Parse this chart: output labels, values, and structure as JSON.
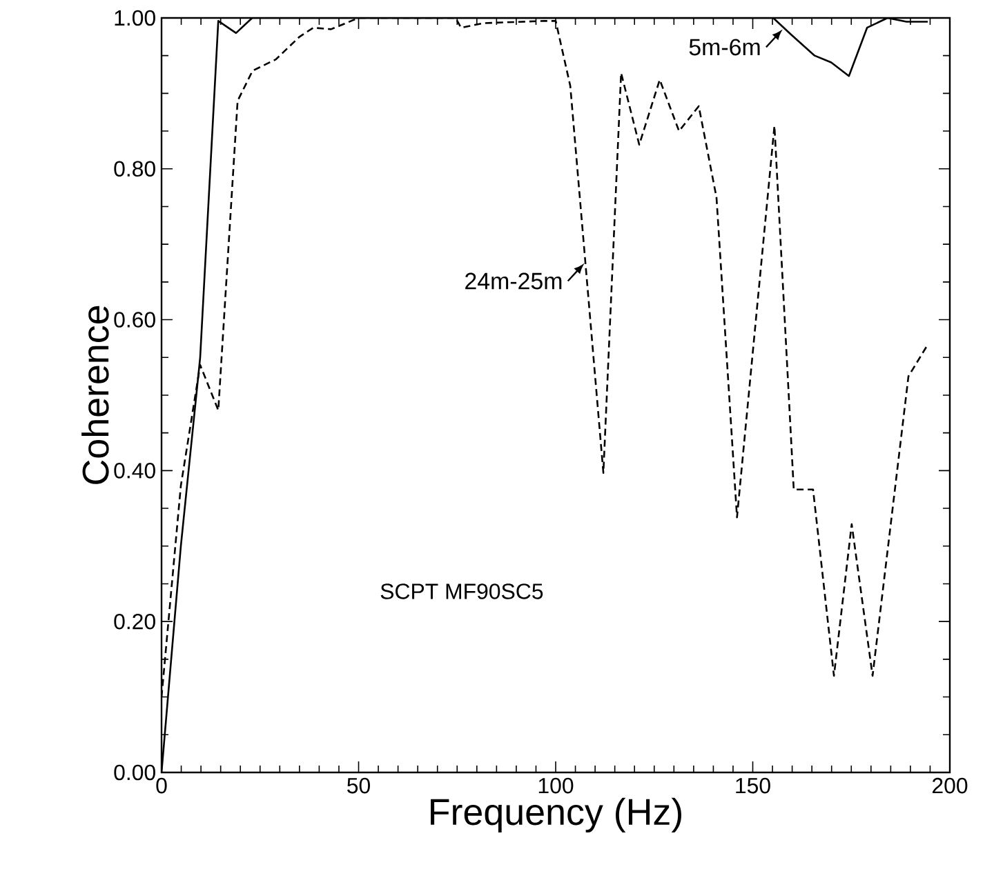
{
  "chart_data": {
    "type": "line",
    "xlabel": "Frequency  (Hz)",
    "ylabel": "Coherence",
    "xlim": [
      0,
      200
    ],
    "ylim": [
      0,
      1
    ],
    "xticks": [
      0,
      50,
      100,
      150,
      200
    ],
    "yticks": [
      {
        "value": 0,
        "label": "0.00"
      },
      {
        "value": 0.2,
        "label": "0.20"
      },
      {
        "value": 0.4,
        "label": "0.40"
      },
      {
        "value": 0.6,
        "label": "0.60"
      },
      {
        "value": 0.8,
        "label": "0.80"
      },
      {
        "value": 1,
        "label": "1.00"
      }
    ],
    "series": [
      {
        "color": "#000000",
        "line_style": "solid",
        "x": [
          0,
          4.9,
          9.8,
          14.4,
          18.9,
          23,
          50,
          100,
          155.2,
          159.7,
          165.7,
          169.9,
          174.4,
          179,
          184.2,
          189,
          194.4
        ],
        "values": [
          0.0,
          0.3,
          0.55,
          0.996,
          0.98,
          1.0,
          1.0,
          1.0,
          1.0,
          0.978,
          0.95,
          0.941,
          0.923,
          0.987,
          1.0,
          0.995,
          0.995
        ]
      },
      {
        "color": "#000000",
        "line_style": "dashed",
        "x": [
          0,
          4.9,
          9.8,
          14.4,
          19.3,
          23.1,
          29,
          35,
          38.5,
          43,
          50,
          74.6,
          76,
          81.6,
          97,
          100,
          103.7,
          112.1,
          116.6,
          121.2,
          126.4,
          131.3,
          136.3,
          140.8,
          146,
          155.5,
          160.4,
          165.3,
          170.6,
          175.1,
          180.4,
          189.5,
          194.4
        ],
        "values": [
          0.1,
          0.38,
          0.54,
          0.48,
          0.89,
          0.93,
          0.945,
          0.975,
          0.987,
          0.985,
          1.0,
          1.0,
          0.987,
          0.993,
          0.996,
          0.996,
          0.91,
          0.397,
          0.927,
          0.832,
          0.918,
          0.85,
          0.883,
          0.762,
          0.338,
          0.857,
          0.375,
          0.375,
          0.128,
          0.329,
          0.128,
          0.525,
          0.567
        ]
      }
    ],
    "annotations": [
      {
        "text": "5m-6m",
        "x": 157.6,
        "y": 0.985
      },
      {
        "text": "24m-25m",
        "x": 107.3,
        "y": 0.675
      },
      "SCPT MF90SC5"
    ]
  }
}
